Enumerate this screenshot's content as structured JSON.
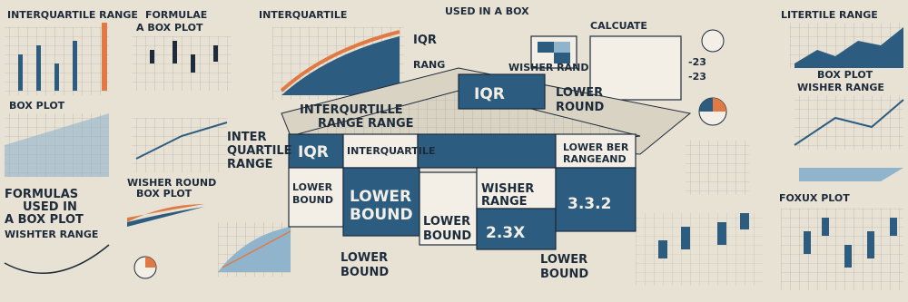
{
  "texts": [
    "INTERQUARTILE RANGE",
    "FORMULAE",
    "A BOX PLOT",
    "INTERQUARTILE",
    "USED IN A BOX",
    "CALCUATE",
    "LITERTILE RANGE",
    "BOX PLOT",
    "BOX PLOT",
    "WISHER RANGE",
    "IQR",
    "RANG",
    "WISHER RAND",
    "LOWER",
    "ROUND",
    "INTERQURTILLE",
    "RANGE RANGE",
    "IQR",
    "INTER",
    "QUARTILE",
    "RANGE",
    "IQR",
    "INTERQUARTILE",
    "LOWER BER",
    "RANGEAND",
    "LOWER",
    "BOUND",
    "LOWER",
    "BOUND",
    "LOWER",
    "BOUND",
    "WISHER",
    "RANGE",
    "2.3X",
    "3.3.2",
    "FORMULAS",
    "USED IN",
    "A BOX PLOT",
    "WISHER ROUND",
    "BOX PLOT",
    "WISHTER RANGE",
    "LOWER",
    "BOUND",
    "LOWER",
    "BOUND",
    "FOXUX PLOT",
    "-23",
    "-23"
  ]
}
